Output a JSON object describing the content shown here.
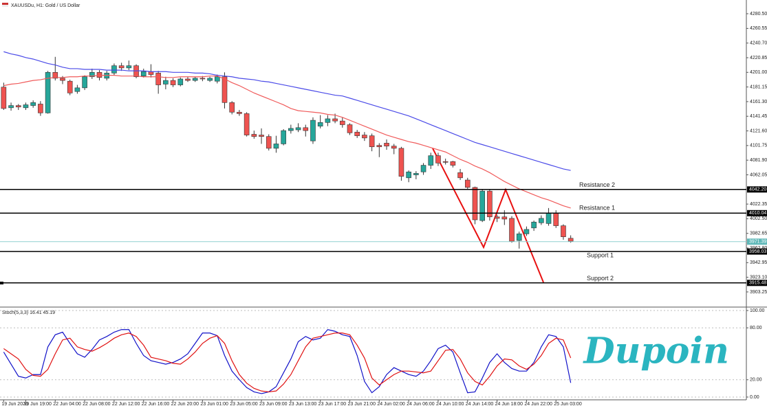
{
  "chart_data": [
    {
      "type": "candlestick",
      "title": "XAUUSDu, H1:  Gold / US Dollar",
      "categories": [
        "19 Jun 2026",
        null,
        null,
        "19 Jun 19:00",
        null,
        null,
        null,
        "22 Jun 04:00",
        null,
        null,
        null,
        "22 Jun 08:00",
        null,
        null,
        null,
        "22 Jun 12:00",
        null,
        null,
        null,
        "22 Jun 16:00",
        null,
        null,
        null,
        "22 Jun 20:00",
        null,
        null,
        null,
        "23 Jun 01:00",
        null,
        null,
        null,
        "23 Jun 05:00",
        null,
        null,
        null,
        "23 Jun 09:00",
        null,
        null,
        null,
        "23 Jun 13:00",
        null,
        null,
        null,
        "23 Jun 17:00",
        null,
        null,
        null,
        "23 Jun 21:00",
        null,
        null,
        null,
        "24 Jun 02:00",
        null,
        null,
        null,
        "24 Jun 06:00",
        null,
        null,
        null,
        "24 Jun 10:00",
        null,
        null,
        null,
        "24 Jun 14:00",
        null,
        null,
        null,
        "24 Jun 18:00",
        null,
        null,
        null,
        "24 Jun 22:00",
        null,
        null,
        null,
        "25 Jun 03:00",
        null,
        null
      ],
      "open": [
        4181,
        4153,
        4156,
        4153,
        4156,
        4158,
        4146,
        4201,
        4193,
        4189,
        4175,
        4180,
        4195,
        4201,
        4193,
        4200,
        4210,
        4207,
        4210,
        4196,
        4202,
        4200,
        4185,
        4190,
        4184,
        4192,
        4190,
        4193,
        4190,
        4189,
        4195,
        4160,
        4147,
        4145,
        4117,
        4116,
        4114,
        4098,
        4104,
        4122,
        4123,
        4126,
        4108,
        4128,
        4133,
        4138,
        4135,
        4130,
        4120,
        4116,
        4115,
        4102,
        4105,
        4101,
        4098,
        4058,
        4062,
        4066,
        4075,
        4088,
        4080,
        4080,
        4065,
        4055,
        4045,
        4000,
        4040,
        4005,
        4005,
        4003,
        3973,
        3982,
        3990,
        3997,
        3996,
        4010,
        3993,
        3976
      ],
      "high": [
        4187,
        4160,
        4158,
        4160,
        4163,
        4162,
        4203,
        4222,
        4196,
        4191,
        4184,
        4197,
        4206,
        4204,
        4203,
        4213,
        4214,
        4217,
        4212,
        4206,
        4212,
        4203,
        4195,
        4193,
        4194,
        4195,
        4195,
        4196,
        4195,
        4198,
        4201,
        4162,
        4150,
        4147,
        4122,
        4125,
        4117,
        4115,
        4124,
        4130,
        4132,
        4130,
        4140,
        4143,
        4143,
        4145,
        4140,
        4132,
        4123,
        4120,
        4118,
        4105,
        4110,
        4104,
        4100,
        4068,
        4067,
        4078,
        4092,
        4092,
        4084,
        4081,
        4070,
        4058,
        4046,
        4042,
        4042,
        4008,
        4014,
        4006,
        3985,
        3992,
        4000,
        4007,
        4017,
        4014,
        3995,
        3980
      ],
      "low": [
        4150,
        4149,
        4150,
        4150,
        4153,
        4142,
        4145,
        4190,
        4185,
        4170,
        4172,
        4177,
        4192,
        4190,
        4190,
        4197,
        4203,
        4204,
        4193,
        4194,
        4194,
        4172,
        4178,
        4181,
        4182,
        4188,
        4188,
        4189,
        4188,
        4186,
        4152,
        4144,
        4142,
        4114,
        4111,
        4104,
        4095,
        4092,
        4102,
        4118,
        4120,
        4114,
        4104,
        4125,
        4128,
        4132,
        4126,
        4116,
        4112,
        4108,
        4094,
        4086,
        4096,
        4090,
        4054,
        4052,
        4056,
        4062,
        4070,
        4074,
        4076,
        4072,
        4055,
        4043,
        3995,
        3998,
        4000,
        3998,
        3994,
        3970,
        3962,
        3979,
        3986,
        3994,
        3993,
        3990,
        3974,
        3970
      ],
      "close": [
        4152,
        4156,
        4154,
        4157,
        4160,
        4146,
        4201,
        4193,
        4190,
        4173,
        4180,
        4195,
        4201,
        4194,
        4200,
        4210,
        4207,
        4210,
        4195,
        4202,
        4198,
        4184,
        4190,
        4184,
        4192,
        4190,
        4193,
        4192,
        4193,
        4195,
        4160,
        4147,
        4145,
        4116,
        4114,
        4114,
        4098,
        4104,
        4122,
        4125,
        4126,
        4122,
        4136,
        4133,
        4138,
        4135,
        4130,
        4119,
        4115,
        4112,
        4100,
        4100,
        4101,
        4098,
        4060,
        4066,
        4064,
        4075,
        4088,
        4078,
        4079,
        4075,
        4058,
        4045,
        4001,
        4040,
        4005,
        4003,
        4002,
        3972,
        3982,
        3988,
        3998,
        4003,
        4010,
        3993,
        3978,
        3972
      ],
      "up_color": "#26a69a",
      "down_color": "#ef5350",
      "series": [
        {
          "color": "#4a4ae8",
          "values": [
            4229,
            4226,
            4224,
            4221,
            4219,
            4216,
            4213,
            4211,
            4208,
            4206,
            4206,
            4205,
            4205,
            4205,
            4204,
            4204,
            4204,
            4203,
            4203,
            4203,
            4202,
            4202,
            4202,
            4201,
            4201,
            4201,
            4200,
            4200,
            4199,
            4197,
            4196,
            4195,
            4193,
            4192,
            4191,
            4189,
            4188,
            4186,
            4184,
            4182,
            4180,
            4178,
            4176,
            4174,
            4172,
            4170,
            4169,
            4166,
            4163,
            4160,
            4157,
            4154,
            4151,
            4148,
            4145,
            4142,
            4138,
            4134,
            4130,
            4126,
            4122,
            4118,
            4114,
            4110,
            4106,
            4103,
            4100,
            4097,
            4094,
            4091,
            4088,
            4085,
            4082,
            4079,
            4076,
            4073,
            4070,
            4068
          ]
        },
        {
          "color": "#f05a5a",
          "values": [
            4183,
            4185,
            4186,
            4188,
            4190,
            4191,
            4193,
            4194,
            4194,
            4195,
            4195,
            4196,
            4196,
            4197,
            4197,
            4197,
            4196,
            4196,
            4196,
            4195,
            4195,
            4195,
            4194,
            4194,
            4195,
            4195,
            4195,
            4195,
            4196,
            4196,
            4192,
            4187,
            4183,
            4178,
            4173,
            4169,
            4165,
            4161,
            4157,
            4152,
            4149,
            4148,
            4147,
            4146,
            4144,
            4143,
            4140,
            4136,
            4132,
            4128,
            4124,
            4120,
            4116,
            4113,
            4110,
            4107,
            4105,
            4102,
            4099,
            4096,
            4093,
            4088,
            4083,
            4079,
            4074,
            4070,
            4065,
            4059,
            4053,
            4048,
            4043,
            4039,
            4035,
            4031,
            4028,
            4024,
            4020,
            4017
          ]
        }
      ],
      "horizontal_lines": {
        "labels": [
          "Resistance 2",
          "Resistance 1",
          "Support 1",
          "Support 2"
        ],
        "values": [
          4042.2,
          4010.04,
          3958.03,
          3915.48
        ],
        "value_labels": [
          "4042.20",
          "4010.04",
          "3958.03",
          "3915.48"
        ]
      },
      "bid": 3971.39,
      "ylim": [
        3882.7,
        4299.1
      ],
      "yticks": [
        {
          "value": 4280.5,
          "label": "4280.50"
        },
        4260.55,
        {
          "value": 4240.7,
          "label": "4240.70"
        },
        4220.85,
        {
          "value": 4201,
          "label": "4201.00"
        },
        4181.15,
        {
          "value": 4161.3,
          "label": "4161.30"
        },
        4141.45,
        {
          "value": 4121.6,
          "label": "4121.60"
        },
        4101.75,
        {
          "value": 4081.9,
          "label": "4081.90"
        },
        4062.05,
        4022.35,
        {
          "value": 4002.5,
          "label": "4002.50"
        },
        3982.65,
        {
          "value": 3962.8,
          "label": "3962.80"
        },
        3942.95,
        {
          "value": 3923.1,
          "label": "3923.10"
        },
        3903.25
      ]
    },
    {
      "type": "line",
      "title": "Stoch(5,3,3) 16.41 45.19",
      "series": [
        {
          "color": "#1010c8",
          "values": [
            52,
            38,
            24,
            22,
            26,
            26,
            58,
            72,
            75,
            62,
            50,
            46,
            55,
            66,
            70,
            75,
            78,
            78,
            62,
            48,
            42,
            40,
            38,
            40,
            44,
            50,
            62,
            74,
            74,
            71,
            48,
            30,
            20,
            11,
            6,
            4,
            6,
            12,
            28,
            44,
            64,
            70,
            66,
            68,
            78,
            76,
            72,
            70,
            48,
            18,
            5,
            12,
            26,
            34,
            30,
            26,
            24,
            30,
            42,
            56,
            60,
            52,
            28,
            5,
            6,
            22,
            40,
            50,
            40,
            33,
            30,
            30,
            40,
            58,
            72,
            70,
            58,
            16.41
          ]
        },
        {
          "color": "#e01010",
          "values": [
            56,
            50,
            44,
            32,
            25,
            24,
            32,
            50,
            66,
            68,
            58,
            55,
            53,
            57,
            62,
            68,
            72,
            74,
            70,
            60,
            46,
            44,
            42,
            39,
            38,
            44,
            52,
            62,
            68,
            71,
            62,
            42,
            26,
            16,
            10,
            7,
            6,
            7,
            15,
            26,
            42,
            58,
            68,
            70,
            72,
            74,
            74,
            72,
            60,
            45,
            22,
            14,
            20,
            26,
            30,
            30,
            29,
            28,
            30,
            42,
            54,
            55,
            44,
            28,
            18,
            14,
            24,
            36,
            44,
            43,
            36,
            32,
            38,
            48,
            62,
            68,
            66,
            45.19
          ]
        }
      ],
      "ylim": [
        -3.2,
        103.2
      ],
      "yticks": [
        {
          "value": 100,
          "label": "100.00"
        },
        {
          "value": 80,
          "label": "80.00"
        },
        {
          "value": 20,
          "label": "20.00"
        },
        {
          "value": 0,
          "label": "0.00"
        }
      ]
    }
  ],
  "logo": "Dupoin"
}
